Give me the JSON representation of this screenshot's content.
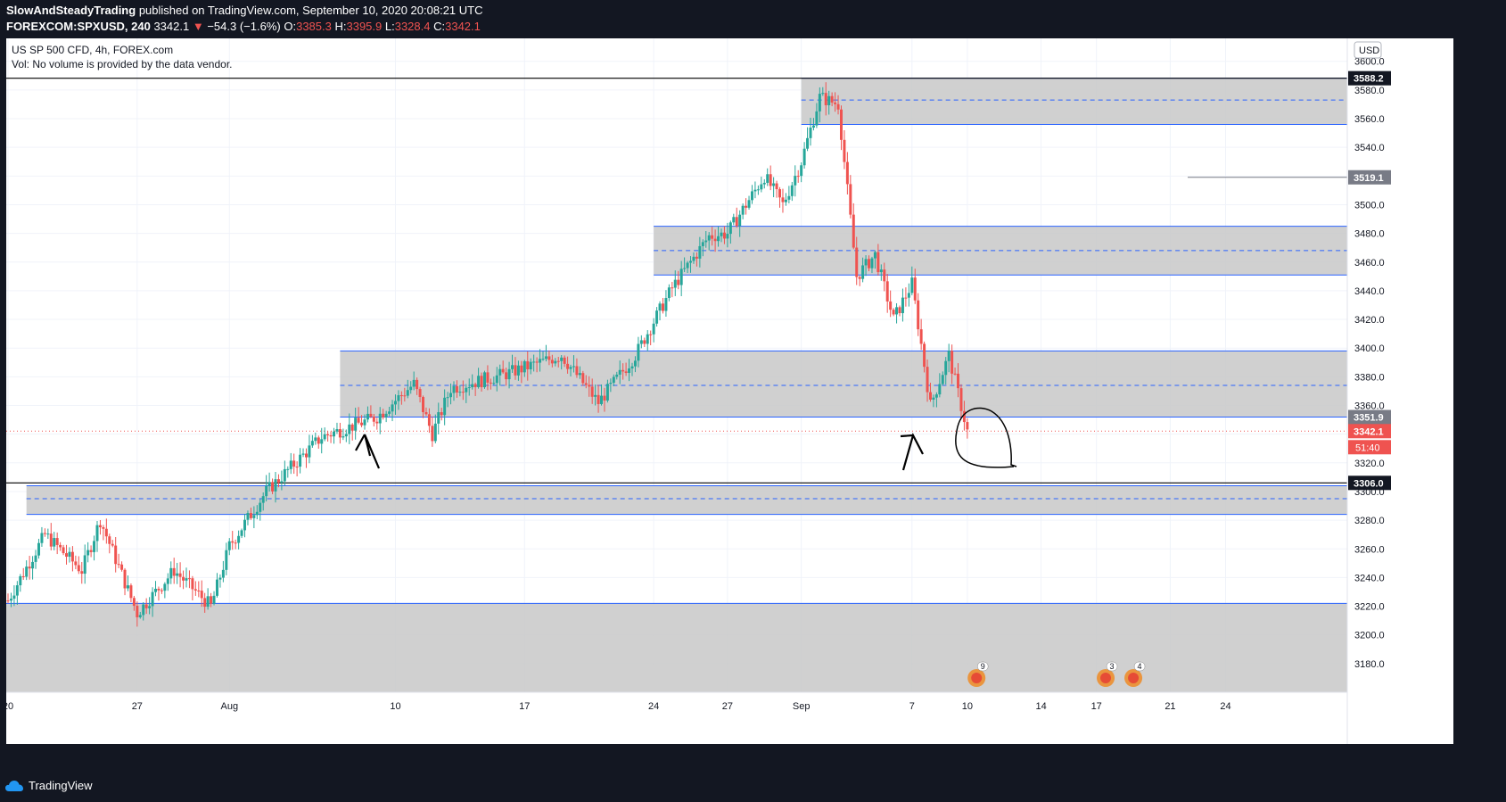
{
  "header": {
    "publisher": "SlowAndSteadyTrading",
    "published_text": "published on TradingView.com, September 10, 2020 20:08:21 UTC",
    "symbol": "FOREXCOM:SPXUSD, 240",
    "last": "3342.1",
    "change": "−54.3 (−1.6%)",
    "o_label": "O:",
    "o_value": "3385.3",
    "h_label": "H:",
    "h_value": "3395.9",
    "l_label": "L:",
    "l_value": "3328.4",
    "c_label": "C:",
    "c_value": "3342.1"
  },
  "legend": {
    "title": "US SP 500 CFD, 4h, FOREX.com",
    "volume": "Vol: No volume is provided by the data vendor."
  },
  "currency": "USD",
  "footer": {
    "brand": "TradingView"
  },
  "colors": {
    "up": "#26a69a",
    "down": "#ef5350",
    "zone": "#c8c8c8",
    "zone_line": "#2962ff",
    "background": "#ffffff"
  },
  "chart_data": {
    "type": "candlestick",
    "title": "US SP 500 CFD, 4h, FOREX.com",
    "ylim": [
      3160,
      3616
    ],
    "grid": true,
    "y_ticks": [
      3180,
      3200,
      3220,
      3240,
      3260,
      3280,
      3300,
      3320,
      3340,
      3360,
      3380,
      3400,
      3420,
      3440,
      3460,
      3480,
      3500,
      3520,
      3540,
      3560,
      3580,
      3600
    ],
    "y_tick_labels": [
      "3180.0",
      "3200.0",
      "3220.0",
      "3240.0",
      "3260.0",
      "3280.0",
      "3300.0",
      "3320.0",
      "3340.0",
      "3360.0",
      "3380.0",
      "3400.0",
      "3420.0",
      "3440.0",
      "3460.0",
      "3480.0",
      "3500.0",
      "3520.0",
      "3540.0",
      "3560.0",
      "3580.0",
      "3600.0"
    ],
    "x_labels": [
      "20",
      "27",
      "Aug",
      "10",
      "17",
      "24",
      "27",
      "Sep",
      "7",
      "10",
      "14",
      "17",
      "21",
      "24"
    ],
    "x_label_days": [
      0,
      7,
      12,
      21,
      28,
      35,
      39,
      43,
      49,
      52,
      56,
      59,
      63,
      66
    ],
    "x_range_days": [
      0,
      72.5
    ],
    "candle_anchors": [
      [
        "2020-07-20",
        3224
      ],
      [
        "2020-07-22",
        3270
      ],
      [
        "2020-07-24",
        3245
      ],
      [
        "2020-07-25",
        3280
      ],
      [
        "2020-07-27",
        3215
      ],
      [
        "2020-07-29",
        3245
      ],
      [
        "2020-07-31",
        3220
      ],
      [
        "2020-08-01",
        3262
      ],
      [
        "2020-08-03",
        3300
      ],
      [
        "2020-08-06",
        3338
      ],
      [
        "2020-08-09",
        3352
      ],
      [
        "2020-08-11",
        3375
      ],
      [
        "2020-08-12",
        3340
      ],
      [
        "2020-08-13",
        3372
      ],
      [
        "2020-08-16",
        3382
      ],
      [
        "2020-08-19",
        3395
      ],
      [
        "2020-08-21",
        3362
      ],
      [
        "2020-08-23",
        3395
      ],
      [
        "2020-08-25",
        3442
      ],
      [
        "2020-08-27",
        3478
      ],
      [
        "2020-08-28",
        3480
      ],
      [
        "2020-08-30",
        3520
      ],
      [
        "2020-08-31",
        3500
      ],
      [
        "2020-09-01",
        3530
      ],
      [
        "2020-09-02",
        3575
      ],
      [
        "2020-09-03",
        3570
      ],
      [
        "2020-09-04",
        3450
      ],
      [
        "2020-09-05",
        3465
      ],
      [
        "2020-09-06",
        3420
      ],
      [
        "2020-09-07",
        3445
      ],
      [
        "2020-09-08",
        3360
      ],
      [
        "2020-09-09",
        3395
      ],
      [
        "2020-09-10",
        3342
      ]
    ],
    "zones": [
      {
        "from": "2020-09-01",
        "top": 3588.2,
        "bottom": 3556,
        "mid": 3573
      },
      {
        "from": "2020-08-24",
        "top": 3485,
        "bottom": 3451,
        "mid": 3468
      },
      {
        "from": "2020-08-07",
        "top": 3398,
        "bottom": 3351.9,
        "mid": 3374
      },
      {
        "from": "2020-07-21",
        "top": 3304,
        "bottom": 3284,
        "mid": 3295
      },
      {
        "from": "2020-07-19",
        "top": 3222,
        "bottom": 3160,
        "mid": null
      }
    ],
    "horizontal_lines": [
      3588.2,
      3306.0
    ],
    "price_labels": [
      {
        "value": 3588.2,
        "text": "3588.2",
        "style": "black"
      },
      {
        "value": 3519.1,
        "text": "3519.1",
        "style": "gray"
      },
      {
        "value": 3351.9,
        "text": "3351.9",
        "style": "gray"
      },
      {
        "value": 3342.1,
        "text": "3342.1",
        "style": "red"
      },
      {
        "value": 3306.0,
        "text": "3306.0",
        "style": "black"
      }
    ],
    "countdown": "51:40",
    "events": [
      {
        "day": 52.5,
        "label": "9"
      },
      {
        "day": 59.5,
        "label": "3"
      },
      {
        "day": 61.0,
        "label": "4"
      }
    ]
  }
}
